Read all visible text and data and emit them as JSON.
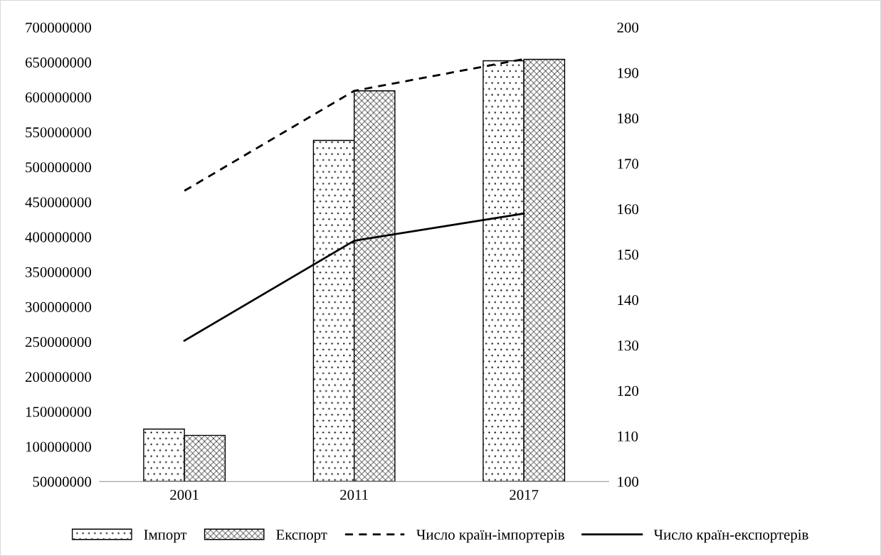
{
  "chart_data": {
    "type": "bar",
    "categories": [
      "2001",
      "2011",
      "2017"
    ],
    "series": [
      {
        "name": "Імпорт",
        "color": "#000000",
        "values": [
          125000000,
          538000000,
          652000000
        ]
      },
      {
        "name": "Експорт",
        "color": "#000000",
        "values": [
          116000000,
          609000000,
          654000000
        ]
      },
      {
        "name": "Число країн-імпортерів",
        "type": "line",
        "color": "#000000",
        "line_style": "dashed",
        "axis": "y2",
        "values": [
          164,
          186,
          193
        ]
      },
      {
        "name": "Число країн-експортерів",
        "type": "line",
        "color": "#000000",
        "line_style": "solid",
        "axis": "y2",
        "values": [
          131,
          153,
          159
        ]
      }
    ],
    "ylim": [
      50000000,
      700000000
    ],
    "yticks": [
      50000000,
      100000000,
      150000000,
      200000000,
      250000000,
      300000000,
      350000000,
      400000000,
      450000000,
      500000000,
      550000000,
      600000000,
      650000000,
      700000000
    ],
    "y2lim": [
      100,
      200
    ],
    "y2ticks": [
      100,
      110,
      120,
      130,
      140,
      150,
      160,
      170,
      180,
      190,
      200
    ],
    "legend": "bottom",
    "grid": false,
    "marker": "none"
  }
}
